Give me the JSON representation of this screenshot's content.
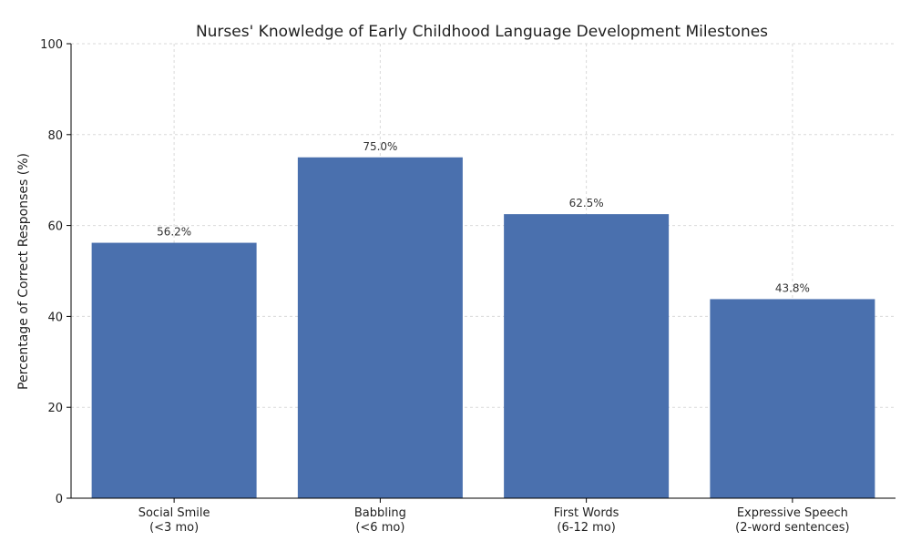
{
  "chart_data": {
    "type": "bar",
    "title": "Nurses' Knowledge of Early Childhood Language Development Milestones",
    "ylabel": "Percentage of Correct Responses (%)",
    "xlabel": "",
    "ylim": [
      0,
      100
    ],
    "yticks": [
      0,
      20,
      40,
      60,
      80,
      100
    ],
    "grid": true,
    "categories": [
      [
        "Social Smile",
        "(<3 mo)"
      ],
      [
        "Babbling",
        "(<6 mo)"
      ],
      [
        "First Words",
        "(6-12 mo)"
      ],
      [
        "Expressive Speech",
        "(2-word sentences)"
      ]
    ],
    "values": [
      56.2,
      75.0,
      62.5,
      43.8
    ],
    "data_labels": [
      "56.2%",
      "75.0%",
      "62.5%",
      "43.8%"
    ],
    "bar_color": "#4a70ae"
  }
}
